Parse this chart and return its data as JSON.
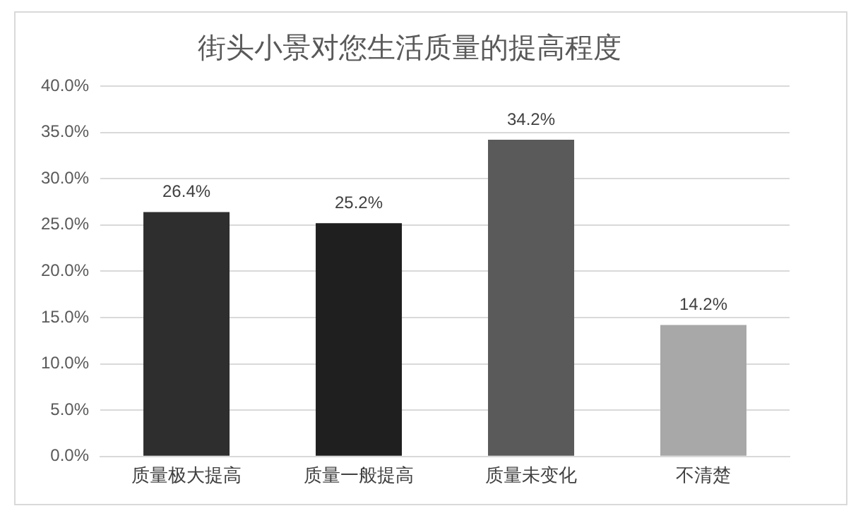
{
  "chart_data": {
    "type": "bar",
    "title": "街头小景对您生活质量的提高程度",
    "categories": [
      "质量极大提高",
      "质量一般提高",
      "质量未变化",
      "不清楚"
    ],
    "values": [
      26.4,
      25.2,
      34.2,
      14.2
    ],
    "colors": [
      "#2e2e2e",
      "#1f1f1f",
      "#5a5a5a",
      "#a8a8a8"
    ],
    "value_labels": [
      "26.4%",
      "25.2%",
      "34.2%",
      "14.2%"
    ],
    "ylim": [
      0,
      40
    ],
    "yticks": [
      {
        "value": 0,
        "label": "0.0%"
      },
      {
        "value": 5,
        "label": "5.0%"
      },
      {
        "value": 10,
        "label": "10.0%"
      },
      {
        "value": 15,
        "label": "15.0%"
      },
      {
        "value": 20,
        "label": "20.0%"
      },
      {
        "value": 25,
        "label": "25.0%"
      },
      {
        "value": 30,
        "label": "30.0%"
      },
      {
        "value": 35,
        "label": "35.0%"
      },
      {
        "value": 40,
        "label": "40.0%"
      }
    ],
    "grid": "y",
    "legend": false
  }
}
